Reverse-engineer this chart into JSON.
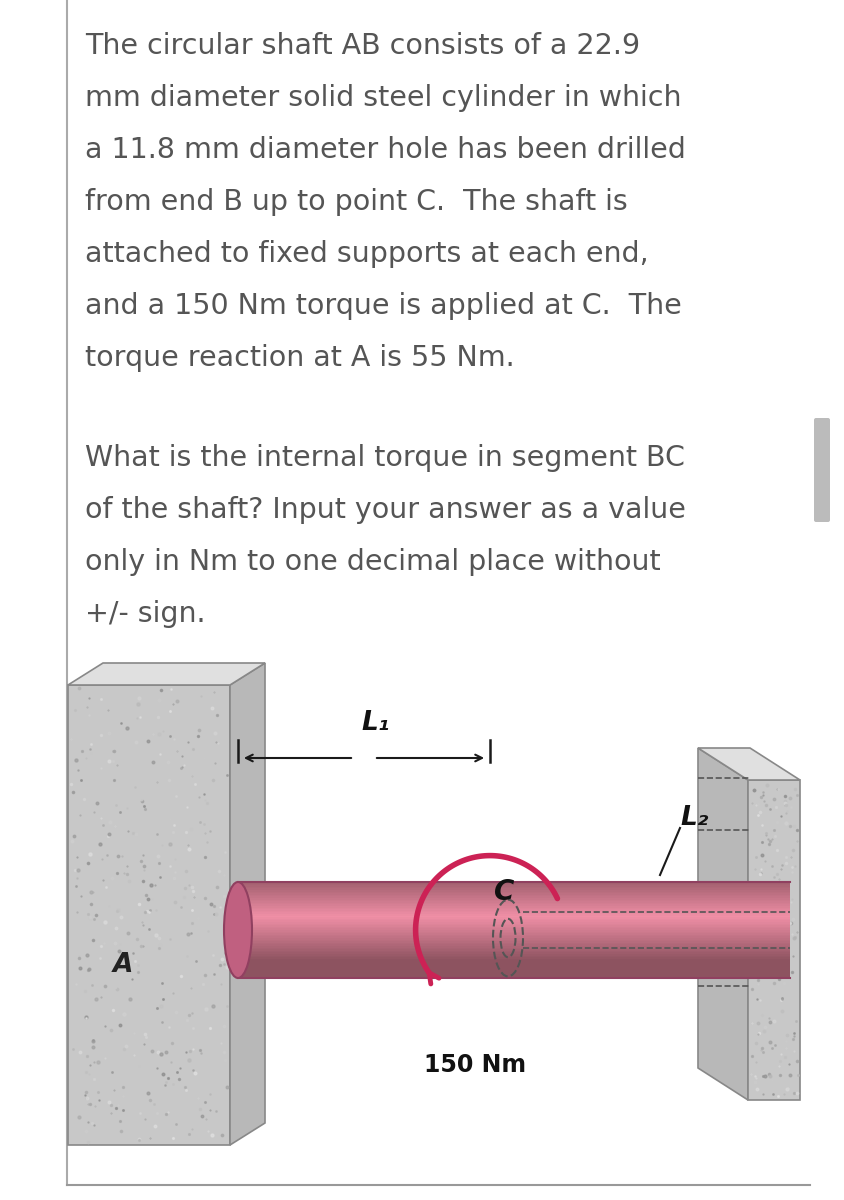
{
  "bg_color": "#ffffff",
  "text_color": "#555555",
  "para1_lines": [
    "The circular shaft AB consists of a 22.9",
    "mm diameter solid steel cylinder in which",
    "a 11.8 mm diameter hole has been drilled",
    "from end B up to point C.  The shaft is",
    "attached to fixed supports at each end,",
    "and a 150 Nm torque is applied at C.  The",
    "torque reaction at A is 55 Nm."
  ],
  "para2_lines": [
    "What is the internal torque in segment BC",
    "of the shaft? Input your answer as a value",
    "only in Nm to one decimal place without",
    "+/- sign."
  ],
  "torque_label": "150 Nm",
  "L1_label": "L₁",
  "L2_label": "L₂",
  "C_label": "C",
  "A_label": "A",
  "shaft_pink_light": "#e8afc0",
  "shaft_pink_mid": "#d4708a",
  "shaft_pink_dark": "#b85070",
  "wall_gray_front": "#cccccc",
  "wall_gray_side": "#aaaaaa",
  "wall_gray_top": "#e2e2e2",
  "wall_gray_speckle_lo": 0.55,
  "wall_gray_speckle_hi": 0.88,
  "border_line_color": "#aaaaaa",
  "arrow_black": "#1a1a1a",
  "torque_arrow_color": "#cc2255",
  "dashed_color": "#555555",
  "bottom_line_color": "#999999",
  "scrollbar_color": "#bbbbbb"
}
